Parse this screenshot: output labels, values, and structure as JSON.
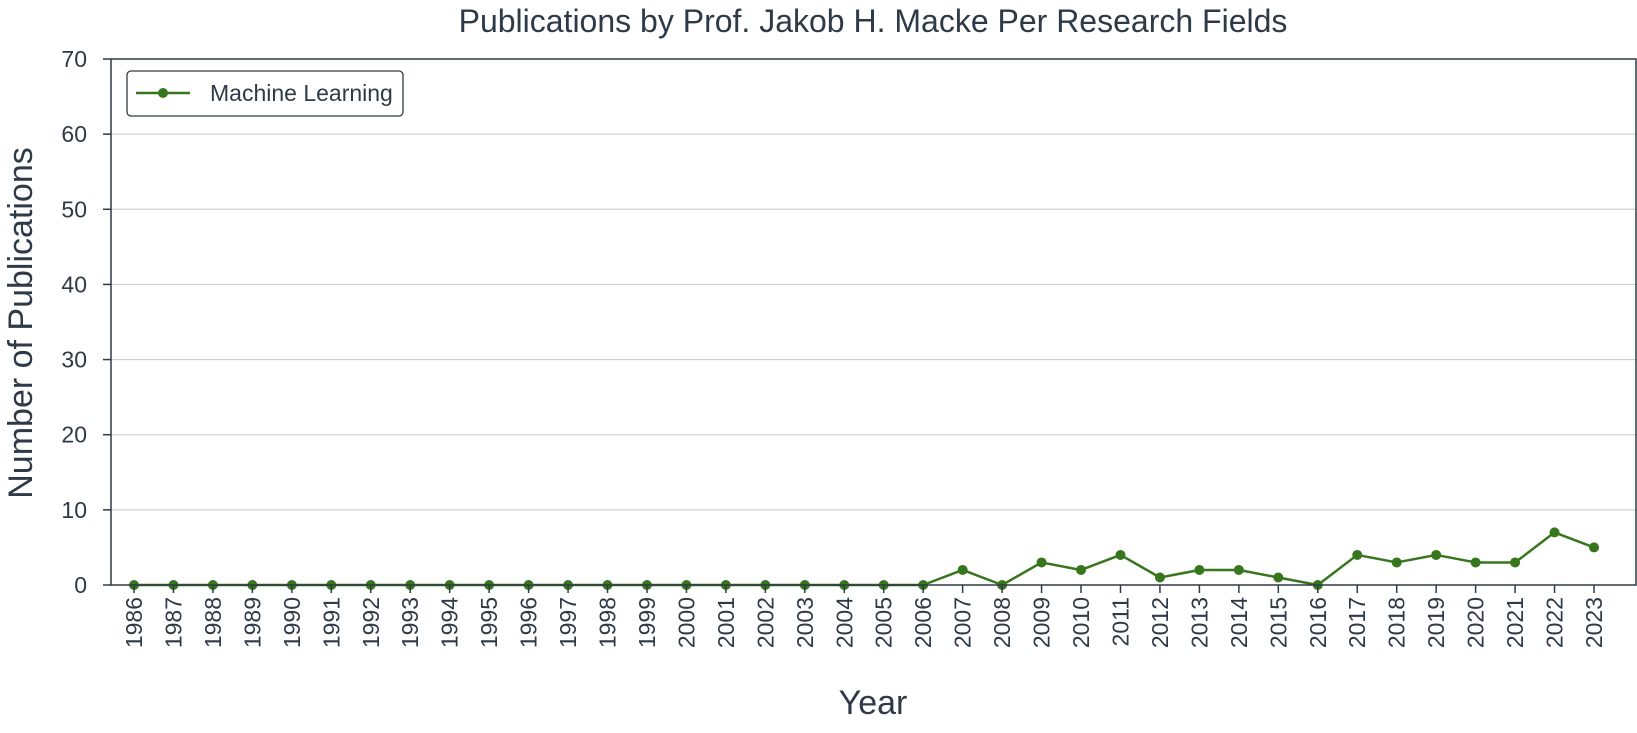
{
  "chart_data": {
    "type": "line",
    "title": "Publications by Prof. Jakob H. Macke Per Research Fields",
    "xlabel": "Year",
    "ylabel": "Number of Publications",
    "ylim": [
      0,
      70
    ],
    "yticks": [
      "0",
      "10",
      "20",
      "30",
      "40",
      "50",
      "60",
      "70"
    ],
    "grid": "horizontal",
    "legend_position": "top-left",
    "categories": [
      "1986",
      "1987",
      "1988",
      "1989",
      "1990",
      "1991",
      "1992",
      "1993",
      "1994",
      "1995",
      "1996",
      "1997",
      "1998",
      "1999",
      "2000",
      "2001",
      "2002",
      "2003",
      "2004",
      "2005",
      "2006",
      "2007",
      "2008",
      "2009",
      "2010",
      "2011",
      "2012",
      "2013",
      "2014",
      "2015",
      "2016",
      "2017",
      "2018",
      "2019",
      "2020",
      "2021",
      "2022",
      "2023"
    ],
    "series": [
      {
        "name": "Machine Learning",
        "color": "#38761d",
        "values": [
          0,
          0,
          0,
          0,
          0,
          0,
          0,
          0,
          0,
          0,
          0,
          0,
          0,
          0,
          0,
          0,
          0,
          0,
          0,
          0,
          0,
          2,
          0,
          3,
          2,
          4,
          1,
          2,
          2,
          1,
          0,
          4,
          3,
          4,
          3,
          3,
          7,
          5
        ]
      }
    ]
  }
}
